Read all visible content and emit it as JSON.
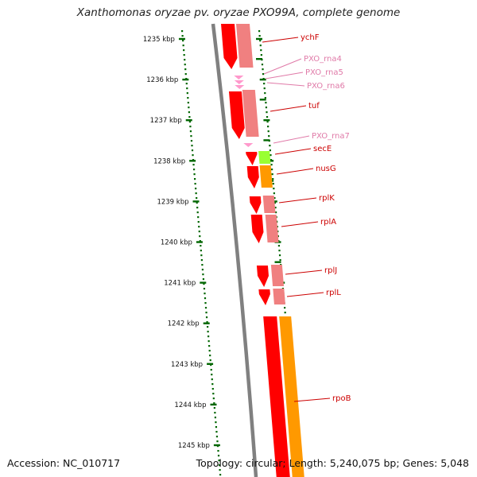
{
  "title": "Xanthomonas oryzae pv. oryzae PXO99A, complete genome",
  "accession": "Accession: NC_010717",
  "summary": "Topology: circular; Length: 5,240,075 bp; Genes: 5,048",
  "colors": {
    "backbone": "#808080",
    "cds_forward": "#ff0000",
    "cds_translation": "#f08080",
    "rna": "#ff99cc",
    "label_cds": "#cc0000",
    "label_rna": "#e07aa8",
    "ticks": "#006600",
    "orange": "#ff9900",
    "lime": "#99ff33"
  },
  "ticks": [
    "1235 kbp",
    "1236 kbp",
    "1237 kbp",
    "1238 kbp",
    "1239 kbp",
    "1240 kbp",
    "1241 kbp",
    "1242 kbp",
    "1243 kbp",
    "1244 kbp",
    "1245 kbp"
  ],
  "genes": [
    {
      "label": "ychF",
      "type": "cds"
    },
    {
      "label": "PXO_rna4",
      "type": "rna"
    },
    {
      "label": "PXO_rna5",
      "type": "rna"
    },
    {
      "label": "PXO_rna6",
      "type": "rna"
    },
    {
      "label": "tuf",
      "type": "cds"
    },
    {
      "label": "PXO_rna7",
      "type": "rna"
    },
    {
      "label": "secE",
      "type": "cds"
    },
    {
      "label": "nusG",
      "type": "cds"
    },
    {
      "label": "rplK",
      "type": "cds"
    },
    {
      "label": "rplA",
      "type": "cds"
    },
    {
      "label": "rplJ",
      "type": "cds"
    },
    {
      "label": "rplL",
      "type": "cds"
    },
    {
      "label": "rpoB",
      "type": "cds"
    }
  ]
}
